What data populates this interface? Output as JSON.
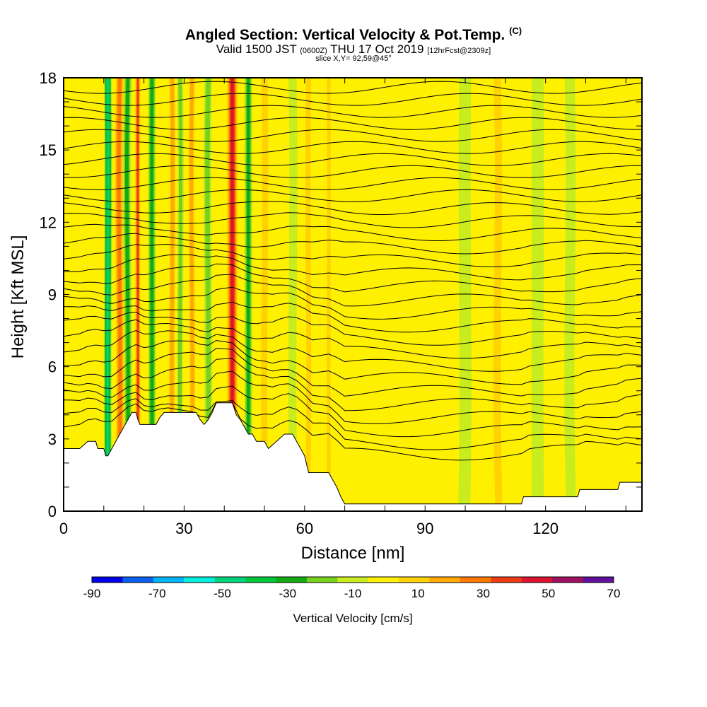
{
  "header": {
    "title_main": "Angled Section: Vertical Velocity & Pot.Temp.",
    "title_unit": "(C)",
    "valid_prefix": "Valid 1500 JST",
    "valid_utc": "(0600Z)",
    "valid_date": "THU 17 Oct 2019",
    "forecast": "[12hrFcst@2309z]",
    "slice": "slice X,Y= 92,59@45°"
  },
  "chart_data": {
    "type": "heatmap",
    "xlabel": "Distance [nm]",
    "ylabel": "Height [Kft MSL]",
    "xlim": [
      0,
      144
    ],
    "ylim": [
      0,
      18
    ],
    "x_ticks": [
      0,
      30,
      60,
      90,
      120
    ],
    "y_ticks": [
      0,
      3,
      6,
      9,
      12,
      15,
      18
    ],
    "colorbar": {
      "label": "Vertical Velocity [cm/s]",
      "tick_values": [
        -90,
        -70,
        -50,
        -30,
        -10,
        10,
        30,
        50,
        70
      ],
      "bins": [
        -90,
        -80,
        -70,
        -60,
        -50,
        -40,
        -30,
        -20,
        -10,
        0,
        10,
        20,
        30,
        40,
        50,
        60,
        70
      ],
      "colors": [
        "#0000ee",
        "#0a5ff0",
        "#00b4f5",
        "#00eedd",
        "#00d27d",
        "#00c83c",
        "#14aa14",
        "#78d21e",
        "#c8ec1e",
        "#fff000",
        "#ffd200",
        "#ffaa00",
        "#ff7800",
        "#f03c14",
        "#dc1432",
        "#a01060",
        "#60109a"
      ]
    },
    "updraft_bands": [
      {
        "x": 14,
        "width": 2.5,
        "value": 40
      },
      {
        "x": 18.5,
        "width": 1.5,
        "value": 55
      },
      {
        "x": 27,
        "width": 2,
        "value": 30
      },
      {
        "x": 32,
        "width": 2,
        "value": 35
      },
      {
        "x": 42,
        "width": 3,
        "value": 65
      },
      {
        "x": 50,
        "width": 2.5,
        "value": 25
      },
      {
        "x": 61,
        "width": 2,
        "value": 20
      },
      {
        "x": 66,
        "width": 1.5,
        "value": 25
      },
      {
        "x": 108,
        "width": 3,
        "value": 25
      },
      {
        "x": 133,
        "width": 3,
        "value": 15
      }
    ],
    "downdraft_bands": [
      {
        "x": 11,
        "width": 2,
        "value": -50
      },
      {
        "x": 16,
        "width": 2,
        "value": -35
      },
      {
        "x": 22,
        "width": 2,
        "value": -30
      },
      {
        "x": 29,
        "width": 1.5,
        "value": -25
      },
      {
        "x": 36,
        "width": 2,
        "value": -20
      },
      {
        "x": 46,
        "width": 2,
        "value": -30
      },
      {
        "x": 57,
        "width": 2,
        "value": -15
      },
      {
        "x": 100,
        "width": 3,
        "value": -15
      },
      {
        "x": 118,
        "width": 3,
        "value": -15
      },
      {
        "x": 126,
        "width": 2.5,
        "value": -10
      }
    ],
    "terrain_height_kft": [
      [
        0,
        2.6
      ],
      [
        4,
        2.6
      ],
      [
        6,
        2.9
      ],
      [
        8,
        2.9
      ],
      [
        8.5,
        2.6
      ],
      [
        10,
        2.6
      ],
      [
        10.5,
        2.3
      ],
      [
        11,
        2.3
      ],
      [
        12,
        2.6
      ],
      [
        13,
        2.9
      ],
      [
        14,
        3.2
      ],
      [
        15,
        3.5
      ],
      [
        16,
        3.8
      ],
      [
        17,
        4.1
      ],
      [
        18,
        4.1
      ],
      [
        18.5,
        3.8
      ],
      [
        19,
        3.6
      ],
      [
        23,
        3.6
      ],
      [
        24,
        3.9
      ],
      [
        25,
        4.1
      ],
      [
        33,
        4.1
      ],
      [
        34,
        3.8
      ],
      [
        35,
        3.6
      ],
      [
        36,
        3.8
      ],
      [
        37,
        4.1
      ],
      [
        38,
        4.5
      ],
      [
        42,
        4.5
      ],
      [
        43,
        4.0
      ],
      [
        44,
        3.8
      ],
      [
        45,
        3.5
      ],
      [
        46,
        3.2
      ],
      [
        47,
        3.2
      ],
      [
        48,
        2.9
      ],
      [
        50,
        2.9
      ],
      [
        51,
        2.6
      ],
      [
        53,
        2.9
      ],
      [
        55,
        3.2
      ],
      [
        57,
        3.2
      ],
      [
        58,
        2.9
      ],
      [
        59,
        2.6
      ],
      [
        60,
        2.3
      ],
      [
        61,
        1.6
      ],
      [
        66,
        1.6
      ],
      [
        67,
        1.3
      ],
      [
        68,
        1.0
      ],
      [
        69,
        0.6
      ],
      [
        70,
        0.3
      ],
      [
        71,
        0.3
      ],
      [
        114,
        0.3
      ],
      [
        114.5,
        0.6
      ],
      [
        128,
        0.6
      ],
      [
        128.5,
        0.9
      ],
      [
        138,
        0.9
      ],
      [
        138.5,
        1.2
      ],
      [
        144,
        1.2
      ]
    ],
    "theta_isentropes_kft": [
      3.2,
      3.6,
      4.1,
      4.6,
      5.1,
      5.6,
      6.1,
      6.6,
      7.1,
      7.6,
      8.1,
      8.6,
      9.1,
      9.6,
      10.1,
      10.6,
      11.1,
      11.6,
      12.1,
      12.6,
      13.1,
      13.6,
      14.1,
      14.6,
      15.1,
      15.6,
      16.1,
      16.6,
      17.1,
      17.6
    ]
  }
}
